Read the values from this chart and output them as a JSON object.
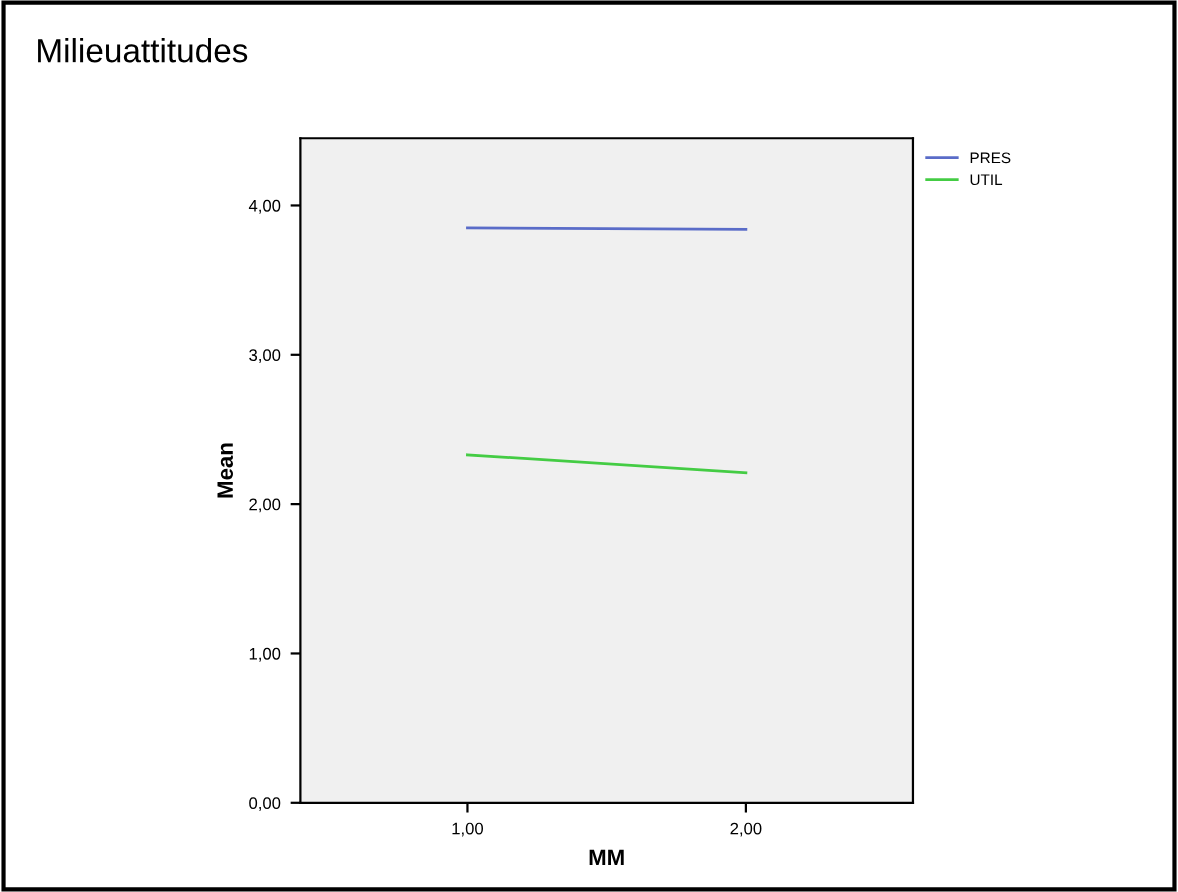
{
  "chart_data": {
    "type": "line",
    "title": "Milieuattitudes",
    "xlabel": "MM",
    "ylabel": "Mean",
    "x": [
      1,
      2
    ],
    "series": [
      {
        "name": "PRES",
        "color": "#5a6cc8",
        "values": [
          3.85,
          3.84
        ]
      },
      {
        "name": "UTIL",
        "color": "#44cc44",
        "values": [
          2.33,
          2.21
        ]
      }
    ],
    "xlim": [
      0.4,
      2.6
    ],
    "xticks": [
      {
        "value": 1,
        "label": "1,00"
      },
      {
        "value": 2,
        "label": "2,00"
      }
    ],
    "ylim": [
      0,
      4.45
    ],
    "yticks": [
      {
        "value": 0,
        "label": "0,00"
      },
      {
        "value": 1,
        "label": "1,00"
      },
      {
        "value": 2,
        "label": "2,00"
      },
      {
        "value": 3,
        "label": "3,00"
      },
      {
        "value": 4,
        "label": "4,00"
      }
    ],
    "grid": false,
    "legend": "top right",
    "marker": "none",
    "line_style": "solid"
  }
}
